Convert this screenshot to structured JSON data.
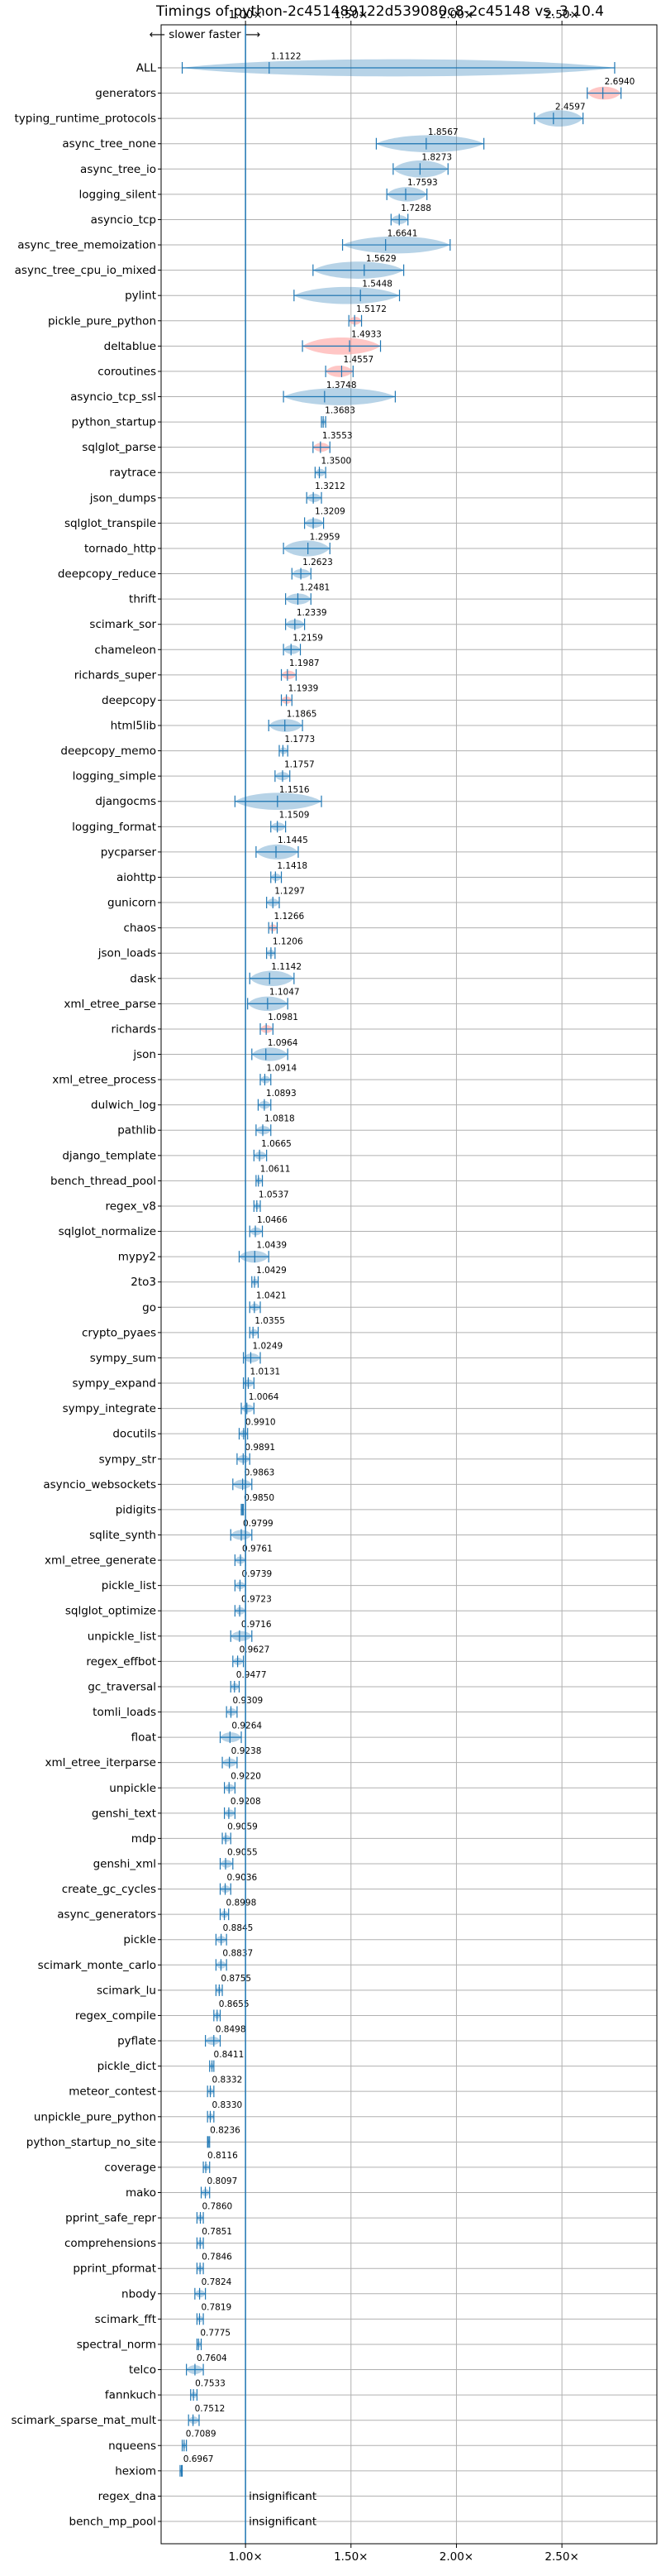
{
  "chart_data": {
    "type": "violin",
    "title": "Timings of python-2c451489122d539080c8-2c45148 vs. 3.10.4",
    "annotation": "⟵ slower   faster ⟶",
    "xlim": [
      0.6,
      2.95
    ],
    "x_ticks": [
      "1.00×",
      "1.50×",
      "2.00×",
      "2.50×"
    ],
    "x_tick_values": [
      1.0,
      1.5,
      2.0,
      2.5
    ],
    "reference_x": 1.0,
    "insignificant_label": "insignificant",
    "colors": {
      "normal": "#1f77b4",
      "highlight": "#ff9896",
      "grid": "#b0b0b0"
    },
    "benchmarks": [
      {
        "name": "ALL",
        "label": "1.1122",
        "median": 1.1122,
        "min": 0.7,
        "max": 2.75
      },
      {
        "name": "generators",
        "label": "2.6940",
        "median": 2.694,
        "min": 2.62,
        "max": 2.78,
        "highlight": true
      },
      {
        "name": "typing_runtime_protocols",
        "label": "2.4597",
        "median": 2.4597,
        "min": 2.37,
        "max": 2.6
      },
      {
        "name": "async_tree_none",
        "label": "1.8567",
        "median": 1.8567,
        "min": 1.62,
        "max": 2.13
      },
      {
        "name": "async_tree_io",
        "label": "1.8273",
        "median": 1.8273,
        "min": 1.7,
        "max": 1.96
      },
      {
        "name": "logging_silent",
        "label": "1.7593",
        "median": 1.7593,
        "min": 1.67,
        "max": 1.86
      },
      {
        "name": "asyncio_tcp",
        "label": "1.7288",
        "median": 1.7288,
        "min": 1.69,
        "max": 1.77
      },
      {
        "name": "async_tree_memoization",
        "label": "1.6641",
        "median": 1.6641,
        "min": 1.46,
        "max": 1.97
      },
      {
        "name": "async_tree_cpu_io_mixed",
        "label": "1.5629",
        "median": 1.5629,
        "min": 1.32,
        "max": 1.75
      },
      {
        "name": "pylint",
        "label": "1.5448",
        "median": 1.5448,
        "min": 1.23,
        "max": 1.73
      },
      {
        "name": "pickle_pure_python",
        "label": "1.5172",
        "median": 1.5172,
        "min": 1.49,
        "max": 1.55,
        "highlight": true
      },
      {
        "name": "deltablue",
        "label": "1.4933",
        "median": 1.4933,
        "min": 1.27,
        "max": 1.64,
        "highlight": true
      },
      {
        "name": "coroutines",
        "label": "1.4557",
        "median": 1.4557,
        "min": 1.38,
        "max": 1.51,
        "highlight": true
      },
      {
        "name": "asyncio_tcp_ssl",
        "label": "1.3748",
        "median": 1.3748,
        "min": 1.18,
        "max": 1.71
      },
      {
        "name": "python_startup",
        "label": "1.3683",
        "median": 1.3683,
        "min": 1.36,
        "max": 1.38
      },
      {
        "name": "sqlglot_parse",
        "label": "1.3553",
        "median": 1.3553,
        "min": 1.32,
        "max": 1.4,
        "highlight": true
      },
      {
        "name": "raytrace",
        "label": "1.3500",
        "median": 1.35,
        "min": 1.33,
        "max": 1.38
      },
      {
        "name": "json_dumps",
        "label": "1.3212",
        "median": 1.3212,
        "min": 1.29,
        "max": 1.36
      },
      {
        "name": "sqlglot_transpile",
        "label": "1.3209",
        "median": 1.3209,
        "min": 1.28,
        "max": 1.37
      },
      {
        "name": "tornado_http",
        "label": "1.2959",
        "median": 1.2959,
        "min": 1.18,
        "max": 1.4
      },
      {
        "name": "deepcopy_reduce",
        "label": "1.2623",
        "median": 1.2623,
        "min": 1.22,
        "max": 1.31
      },
      {
        "name": "thrift",
        "label": "1.2481",
        "median": 1.2481,
        "min": 1.19,
        "max": 1.31
      },
      {
        "name": "scimark_sor",
        "label": "1.2339",
        "median": 1.2339,
        "min": 1.19,
        "max": 1.28
      },
      {
        "name": "chameleon",
        "label": "1.2159",
        "median": 1.2159,
        "min": 1.18,
        "max": 1.26
      },
      {
        "name": "richards_super",
        "label": "1.1987",
        "median": 1.1987,
        "min": 1.17,
        "max": 1.24,
        "highlight": true
      },
      {
        "name": "deepcopy",
        "label": "1.1939",
        "median": 1.1939,
        "min": 1.17,
        "max": 1.22,
        "highlight": true
      },
      {
        "name": "html5lib",
        "label": "1.1865",
        "median": 1.1865,
        "min": 1.11,
        "max": 1.27
      },
      {
        "name": "deepcopy_memo",
        "label": "1.1773",
        "median": 1.1773,
        "min": 1.16,
        "max": 1.2
      },
      {
        "name": "logging_simple",
        "label": "1.1757",
        "median": 1.1757,
        "min": 1.14,
        "max": 1.21
      },
      {
        "name": "djangocms",
        "label": "1.1516",
        "median": 1.1516,
        "min": 0.95,
        "max": 1.36
      },
      {
        "name": "logging_format",
        "label": "1.1509",
        "median": 1.1509,
        "min": 1.12,
        "max": 1.19
      },
      {
        "name": "pycparser",
        "label": "1.1445",
        "median": 1.1445,
        "min": 1.05,
        "max": 1.25
      },
      {
        "name": "aiohttp",
        "label": "1.1418",
        "median": 1.1418,
        "min": 1.12,
        "max": 1.17
      },
      {
        "name": "gunicorn",
        "label": "1.1297",
        "median": 1.1297,
        "min": 1.1,
        "max": 1.16
      },
      {
        "name": "chaos",
        "label": "1.1266",
        "median": 1.1266,
        "min": 1.11,
        "max": 1.15,
        "highlight": true
      },
      {
        "name": "json_loads",
        "label": "1.1206",
        "median": 1.1206,
        "min": 1.1,
        "max": 1.14
      },
      {
        "name": "dask",
        "label": "1.1142",
        "median": 1.1142,
        "min": 1.02,
        "max": 1.23
      },
      {
        "name": "xml_etree_parse",
        "label": "1.1047",
        "median": 1.1047,
        "min": 1.01,
        "max": 1.2
      },
      {
        "name": "richards",
        "label": "1.0981",
        "median": 1.0981,
        "min": 1.07,
        "max": 1.13,
        "highlight": true
      },
      {
        "name": "json",
        "label": "1.0964",
        "median": 1.0964,
        "min": 1.03,
        "max": 1.2
      },
      {
        "name": "xml_etree_process",
        "label": "1.0914",
        "median": 1.0914,
        "min": 1.07,
        "max": 1.12
      },
      {
        "name": "dulwich_log",
        "label": "1.0893",
        "median": 1.0893,
        "min": 1.06,
        "max": 1.12
      },
      {
        "name": "pathlib",
        "label": "1.0818",
        "median": 1.0818,
        "min": 1.05,
        "max": 1.12
      },
      {
        "name": "django_template",
        "label": "1.0665",
        "median": 1.0665,
        "min": 1.04,
        "max": 1.1
      },
      {
        "name": "bench_thread_pool",
        "label": "1.0611",
        "median": 1.0611,
        "min": 1.05,
        "max": 1.08
      },
      {
        "name": "regex_v8",
        "label": "1.0537",
        "median": 1.0537,
        "min": 1.04,
        "max": 1.07
      },
      {
        "name": "sqlglot_normalize",
        "label": "1.0466",
        "median": 1.0466,
        "min": 1.02,
        "max": 1.08
      },
      {
        "name": "mypy2",
        "label": "1.0439",
        "median": 1.0439,
        "min": 0.97,
        "max": 1.11
      },
      {
        "name": "2to3",
        "label": "1.0429",
        "median": 1.0429,
        "min": 1.03,
        "max": 1.06
      },
      {
        "name": "go",
        "label": "1.0421",
        "median": 1.0421,
        "min": 1.02,
        "max": 1.07
      },
      {
        "name": "crypto_pyaes",
        "label": "1.0355",
        "median": 1.0355,
        "min": 1.02,
        "max": 1.06
      },
      {
        "name": "sympy_sum",
        "label": "1.0249",
        "median": 1.0249,
        "min": 0.99,
        "max": 1.07
      },
      {
        "name": "sympy_expand",
        "label": "1.0131",
        "median": 1.0131,
        "min": 0.99,
        "max": 1.04
      },
      {
        "name": "sympy_integrate",
        "label": "1.0064",
        "median": 1.0064,
        "min": 0.98,
        "max": 1.04
      },
      {
        "name": "docutils",
        "label": "0.9910",
        "median": 0.991,
        "min": 0.97,
        "max": 1.01
      },
      {
        "name": "sympy_str",
        "label": "0.9891",
        "median": 0.9891,
        "min": 0.96,
        "max": 1.02
      },
      {
        "name": "asyncio_websockets",
        "label": "0.9863",
        "median": 0.9863,
        "min": 0.94,
        "max": 1.03
      },
      {
        "name": "pidigits",
        "label": "0.9850",
        "median": 0.985,
        "min": 0.98,
        "max": 0.99
      },
      {
        "name": "sqlite_synth",
        "label": "0.9799",
        "median": 0.9799,
        "min": 0.93,
        "max": 1.03
      },
      {
        "name": "xml_etree_generate",
        "label": "0.9761",
        "median": 0.9761,
        "min": 0.95,
        "max": 1.0
      },
      {
        "name": "pickle_list",
        "label": "0.9739",
        "median": 0.9739,
        "min": 0.95,
        "max": 1.0
      },
      {
        "name": "sqlglot_optimize",
        "label": "0.9723",
        "median": 0.9723,
        "min": 0.95,
        "max": 1.0
      },
      {
        "name": "unpickle_list",
        "label": "0.9716",
        "median": 0.9716,
        "min": 0.93,
        "max": 1.03
      },
      {
        "name": "regex_effbot",
        "label": "0.9627",
        "median": 0.9627,
        "min": 0.94,
        "max": 0.99
      },
      {
        "name": "gc_traversal",
        "label": "0.9477",
        "median": 0.9477,
        "min": 0.93,
        "max": 0.97
      },
      {
        "name": "tomli_loads",
        "label": "0.9309",
        "median": 0.9309,
        "min": 0.91,
        "max": 0.96
      },
      {
        "name": "float",
        "label": "0.9264",
        "median": 0.9264,
        "min": 0.88,
        "max": 0.98
      },
      {
        "name": "xml_etree_iterparse",
        "label": "0.9238",
        "median": 0.9238,
        "min": 0.89,
        "max": 0.96
      },
      {
        "name": "unpickle",
        "label": "0.9220",
        "median": 0.922,
        "min": 0.9,
        "max": 0.95
      },
      {
        "name": "genshi_text",
        "label": "0.9208",
        "median": 0.9208,
        "min": 0.9,
        "max": 0.95
      },
      {
        "name": "mdp",
        "label": "0.9059",
        "median": 0.9059,
        "min": 0.89,
        "max": 0.93
      },
      {
        "name": "genshi_xml",
        "label": "0.9055",
        "median": 0.9055,
        "min": 0.88,
        "max": 0.94
      },
      {
        "name": "create_gc_cycles",
        "label": "0.9036",
        "median": 0.9036,
        "min": 0.88,
        "max": 0.93
      },
      {
        "name": "async_generators",
        "label": "0.8998",
        "median": 0.8998,
        "min": 0.88,
        "max": 0.92
      },
      {
        "name": "pickle",
        "label": "0.8845",
        "median": 0.8845,
        "min": 0.86,
        "max": 0.91
      },
      {
        "name": "scimark_monte_carlo",
        "label": "0.8837",
        "median": 0.8837,
        "min": 0.86,
        "max": 0.91
      },
      {
        "name": "scimark_lu",
        "label": "0.8755",
        "median": 0.8755,
        "min": 0.86,
        "max": 0.89
      },
      {
        "name": "regex_compile",
        "label": "0.8655",
        "median": 0.8655,
        "min": 0.85,
        "max": 0.88
      },
      {
        "name": "pyflate",
        "label": "0.8498",
        "median": 0.8498,
        "min": 0.81,
        "max": 0.88
      },
      {
        "name": "pickle_dict",
        "label": "0.8411",
        "median": 0.8411,
        "min": 0.83,
        "max": 0.85
      },
      {
        "name": "meteor_contest",
        "label": "0.8332",
        "median": 0.8332,
        "min": 0.82,
        "max": 0.85
      },
      {
        "name": "unpickle_pure_python",
        "label": "0.8330",
        "median": 0.833,
        "min": 0.82,
        "max": 0.85
      },
      {
        "name": "python_startup_no_site",
        "label": "0.8236",
        "median": 0.8236,
        "min": 0.82,
        "max": 0.83
      },
      {
        "name": "coverage",
        "label": "0.8116",
        "median": 0.8116,
        "min": 0.8,
        "max": 0.83
      },
      {
        "name": "mako",
        "label": "0.8097",
        "median": 0.8097,
        "min": 0.79,
        "max": 0.83
      },
      {
        "name": "pprint_safe_repr",
        "label": "0.7860",
        "median": 0.786,
        "min": 0.77,
        "max": 0.8
      },
      {
        "name": "comprehensions",
        "label": "0.7851",
        "median": 0.7851,
        "min": 0.77,
        "max": 0.8
      },
      {
        "name": "pprint_pformat",
        "label": "0.7846",
        "median": 0.7846,
        "min": 0.77,
        "max": 0.8
      },
      {
        "name": "nbody",
        "label": "0.7824",
        "median": 0.7824,
        "min": 0.76,
        "max": 0.81
      },
      {
        "name": "scimark_fft",
        "label": "0.7819",
        "median": 0.7819,
        "min": 0.77,
        "max": 0.8
      },
      {
        "name": "spectral_norm",
        "label": "0.7775",
        "median": 0.7775,
        "min": 0.77,
        "max": 0.79
      },
      {
        "name": "telco",
        "label": "0.7604",
        "median": 0.7604,
        "min": 0.72,
        "max": 0.8
      },
      {
        "name": "fannkuch",
        "label": "0.7533",
        "median": 0.7533,
        "min": 0.74,
        "max": 0.77
      },
      {
        "name": "scimark_sparse_mat_mult",
        "label": "0.7512",
        "median": 0.7512,
        "min": 0.73,
        "max": 0.78
      },
      {
        "name": "nqueens",
        "label": "0.7089",
        "median": 0.7089,
        "min": 0.7,
        "max": 0.72
      },
      {
        "name": "hexiom",
        "label": "0.6967",
        "median": 0.6967,
        "min": 0.69,
        "max": 0.7
      },
      {
        "name": "regex_dna",
        "label": "insignificant",
        "insignificant": true
      },
      {
        "name": "bench_mp_pool",
        "label": "insignificant",
        "insignificant": true
      }
    ]
  }
}
